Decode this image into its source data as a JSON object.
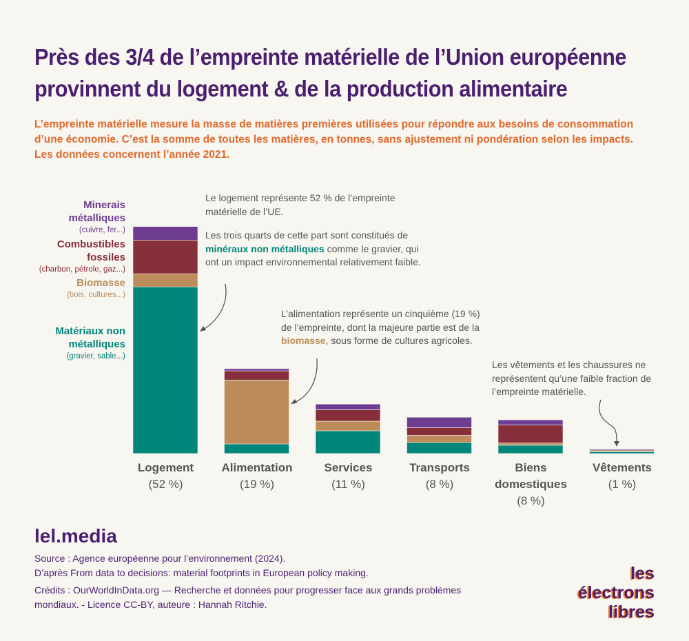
{
  "title": "Près des 3/4 de l’empreinte matérielle de l’Union européenne provinnent du logement & de la production alimentaire",
  "subtitle": "L’empreinte matérielle mesure la masse de matières premières utilisées pour répondre aux besoins de consommation d’une économie. C’est la somme de toutes les matières, en tonnes, sans ajustement ni pondération selon les impacts. Les données concernent l’année 2021.",
  "legend": [
    {
      "name": "Minerais métalliques",
      "sub": "(cuivre, fer...)",
      "color": "#6c3d91"
    },
    {
      "name": "Combustibles fossiles",
      "sub": "(charbon, pétrole, gaz...)",
      "color": "#862f3a"
    },
    {
      "name": "Biomasse",
      "sub": "(bois, cultures...)",
      "color": "#bc8d5a"
    },
    {
      "name": "Matériaux non métalliques",
      "sub": "(gravier, sable...)",
      "color": "#00867a"
    }
  ],
  "annotations": {
    "logement_1": "Le logement représente 52 % de l’empreinte matérielle de l’UE.",
    "logement_2a": "Les trois quarts de cette part sont constitués de ",
    "logement_2b": "minéraux non métalliques",
    "logement_2c": " comme le gravier, qui ont un impact environnemental relativement faible.",
    "alim_a": "L’alimentation représente un cinquième (19 %) de l’empreinte, dont la majeure partie est de la ",
    "alim_b": "biomasse",
    "alim_c": ", sous forme de cultures agricoles.",
    "vet": "Les vêtements et les chaussures ne représentent qu’une faible fraction de l’empreinte matérielle."
  },
  "chart_data": {
    "type": "bar",
    "stacked": true,
    "title": "Près des 3/4 de l’empreinte matérielle de l’Union européenne provinnent du logement & de la production alimentaire",
    "categories": [
      "Logement",
      "Alimentation",
      "Services",
      "Transports",
      "Biens domestiques",
      "Vêtements"
    ],
    "category_labels": [
      "(52 %)",
      "(19 %)",
      "(11 %)",
      "(8 %)",
      "(8 %)",
      "(1 %)"
    ],
    "unit": "% de l’empreinte matérielle",
    "series": [
      {
        "name": "Matériaux non métalliques",
        "values": [
          38.1,
          2.2,
          5.2,
          2.5,
          1.9,
          0.4
        ]
      },
      {
        "name": "Biomasse",
        "values": [
          3.0,
          14.6,
          2.2,
          1.7,
          0.5,
          0.2
        ]
      },
      {
        "name": "Combustibles fossiles",
        "values": [
          7.7,
          2.1,
          2.6,
          1.7,
          4.1,
          0.2
        ]
      },
      {
        "name": "Minerais métalliques",
        "values": [
          3.1,
          0.5,
          1.3,
          2.4,
          1.2,
          0.2
        ]
      }
    ],
    "ylim": [
      0,
      52
    ],
    "grid": false
  },
  "footer": {
    "brand": "lel.media",
    "source": "Source : Agence européenne pour l’environnement (2024).",
    "after": "D’après From data to decisions: material footprints in European policy making.",
    "credits": "Crédits : OurWorldInData.org — Recherche et données pour progresser face aux grands problèmes mondiaux. - Licence CC-BY, auteure : Hannah Ritchie.",
    "logo_line1": "les électrons",
    "logo_line2": "libres"
  }
}
